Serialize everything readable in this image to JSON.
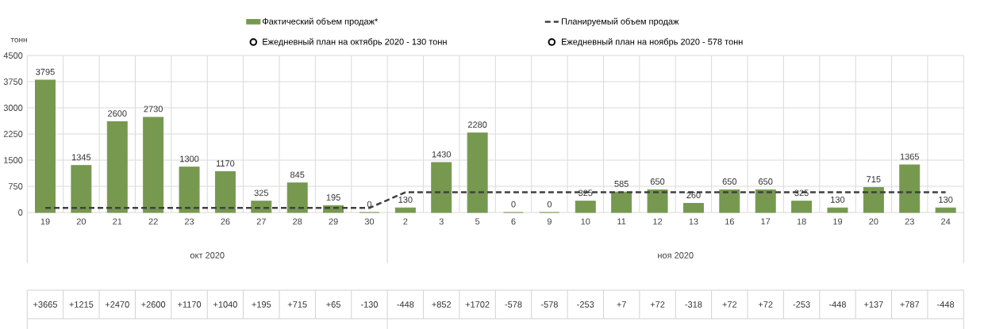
{
  "chart_data": {
    "type": "bar",
    "ylabel": "тонн",
    "categories": [
      "19",
      "20",
      "21",
      "22",
      "23",
      "26",
      "27",
      "28",
      "29",
      "30",
      "2",
      "3",
      "5",
      "6",
      "9",
      "10",
      "11",
      "12",
      "13",
      "16",
      "17",
      "18",
      "19",
      "20",
      "23",
      "24"
    ],
    "series": [
      {
        "name": "Фактический объем продаж*",
        "color": "#76994f",
        "data_labels": true,
        "values": [
          3795,
          1345,
          2600,
          2730,
          1300,
          1170,
          325,
          845,
          195,
          0,
          130,
          1430,
          2280,
          0,
          0,
          325,
          585,
          650,
          260,
          650,
          650,
          325,
          130,
          715,
          1365,
          130
        ]
      },
      {
        "name": "Планируемый объем продаж",
        "type": "line",
        "color": "#404040",
        "line_style": "dashed",
        "values": [
          130,
          130,
          130,
          130,
          130,
          130,
          130,
          130,
          130,
          130,
          578,
          578,
          578,
          578,
          578,
          578,
          578,
          578,
          578,
          578,
          578,
          578,
          578,
          578,
          578,
          578
        ]
      },
      {
        "name": "Ежедневный план на октябрь 2020 - 130 тонн",
        "type": "scatter",
        "color": "#000000",
        "values": [
          null,
          null,
          null,
          null,
          null,
          null,
          null,
          null,
          null,
          null,
          null,
          null,
          null,
          null,
          null,
          null,
          null,
          null,
          null,
          null,
          null,
          null,
          null,
          null,
          null,
          null
        ]
      },
      {
        "name": "Ежедневный план на ноябрь 2020 - 578 тонн",
        "type": "scatter",
        "color": "#000000",
        "values": [
          null,
          null,
          null,
          null,
          null,
          null,
          null,
          null,
          null,
          null,
          null,
          null,
          null,
          null,
          null,
          null,
          null,
          null,
          null,
          null,
          null,
          null,
          null,
          null,
          null,
          null
        ]
      }
    ],
    "ylim": [
      0,
      4500
    ],
    "yticks": [
      0,
      750,
      1500,
      2250,
      3000,
      3750,
      4500
    ],
    "grid": true,
    "legend": "top",
    "annotations": [
      "окт 2020",
      "ноя 2020",
      "+3665",
      "+1215",
      "+2470",
      "+2600",
      "+1170",
      "+1040",
      "+195",
      "+715",
      "+65",
      "-130",
      "-448",
      "+852",
      "+1702",
      "-578",
      "-578",
      "-253",
      "+7",
      "+72",
      "-318",
      "+72",
      "+72",
      "-253",
      "-448",
      "+137",
      "+787",
      "-448"
    ]
  }
}
